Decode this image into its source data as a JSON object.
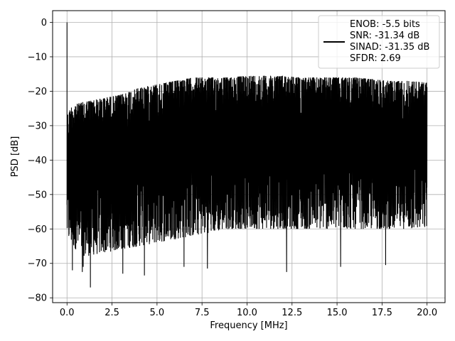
{
  "chart_data": {
    "type": "line",
    "title": "",
    "xlabel": "Frequency [MHz]",
    "ylabel": "PSD [dB]",
    "xlim": [
      -0.8,
      21.0
    ],
    "ylim": [
      -81.4,
      3.4
    ],
    "xticks": [
      0.0,
      2.5,
      5.0,
      7.5,
      10.0,
      12.5,
      15.0,
      17.5,
      20.0
    ],
    "xtick_labels": [
      "0.0",
      "2.5",
      "5.0",
      "7.5",
      "10.0",
      "12.5",
      "15.0",
      "17.5",
      "20.0"
    ],
    "yticks": [
      0,
      -10,
      -20,
      -30,
      -40,
      -50,
      -60,
      -70,
      -80
    ],
    "ytick_labels": [
      "0",
      "−10",
      "−20",
      "−30",
      "−40",
      "−50",
      "−60",
      "−70",
      "−80"
    ],
    "grid": true,
    "legend_position": "top-right",
    "series": [
      {
        "color": "#000000",
        "description": "dense noise floor PSD",
        "x_range": [
          0.0,
          20.0
        ],
        "peak": {
          "x": 0.0,
          "y": 0
        },
        "upper_envelope": {
          "x": [
            0.0,
            0.3,
            1.0,
            2.0,
            3.0,
            4.0,
            5.0,
            6.0,
            7.0,
            8.0,
            9.0,
            10.0,
            11.0,
            12.0,
            13.0,
            14.0,
            15.0,
            16.0,
            17.0,
            18.0,
            19.0,
            20.0
          ],
          "y": [
            -27,
            -24,
            -23,
            -22,
            -21,
            -19,
            -18,
            -17,
            -16,
            -16,
            -16,
            -15.5,
            -15.5,
            -15.5,
            -16,
            -16,
            -16,
            -16,
            -16.5,
            -17,
            -17,
            -17.5
          ]
        },
        "lower_envelope": {
          "x": [
            0.0,
            0.5,
            1.0,
            2.0,
            3.0,
            4.0,
            5.0,
            6.0,
            7.0,
            8.0,
            9.0,
            10.0,
            11.0,
            12.0,
            13.0,
            14.0,
            15.0,
            16.0,
            17.0,
            18.0,
            19.0,
            20.0
          ],
          "y": [
            -63,
            -66,
            -68,
            -67,
            -66,
            -65,
            -64,
            -63,
            -62,
            -61,
            -60,
            -60,
            -60,
            -60,
            -60,
            -60,
            -60,
            -60,
            -60,
            -60,
            -60,
            -60
          ]
        },
        "notable_dips": [
          {
            "x": 0.3,
            "y": -72
          },
          {
            "x": 0.9,
            "y": -71
          },
          {
            "x": 0.85,
            "y": -72.5
          },
          {
            "x": 1.3,
            "y": -77
          },
          {
            "x": 3.1,
            "y": -73
          },
          {
            "x": 4.3,
            "y": -73.5
          },
          {
            "x": 6.5,
            "y": -71
          },
          {
            "x": 7.8,
            "y": -71.5
          },
          {
            "x": 12.2,
            "y": -72.5
          },
          {
            "x": 15.2,
            "y": -71
          },
          {
            "x": 17.7,
            "y": -70.5
          }
        ]
      }
    ],
    "legend": {
      "lines": [
        "ENOB: -5.5 bits",
        "SNR: -31.34 dB",
        "SINAD: -31.35 dB",
        "SFDR: 2.69"
      ]
    }
  }
}
